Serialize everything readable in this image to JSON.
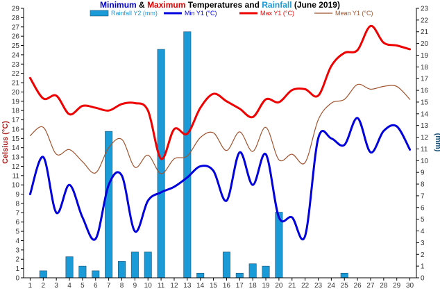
{
  "chart_data": {
    "type": "bar+line",
    "title_parts": [
      {
        "text": "Minimum",
        "color": "#0000cc"
      },
      {
        "text": " & ",
        "color": "#000000"
      },
      {
        "text": "Maximum",
        "color": "#dd0000"
      },
      {
        "text": " Temperatures and ",
        "color": "#000000"
      },
      {
        "text": "Rainfall",
        "color": "#1a9ad6"
      },
      {
        "text": " (June 2019)",
        "color": "#000000"
      }
    ],
    "ylabel_left": "Celsius (°C)",
    "ylabel_right": "(mm)",
    "ylim_left": [
      0,
      29
    ],
    "ylim_right": [
      0,
      23
    ],
    "x": [
      1,
      2,
      3,
      4,
      5,
      6,
      7,
      8,
      9,
      10,
      11,
      12,
      13,
      14,
      15,
      16,
      17,
      18,
      19,
      20,
      21,
      22,
      23,
      24,
      25,
      26,
      27,
      28,
      29,
      30
    ],
    "x_tick_labels": [
      "1",
      "2",
      "3",
      "4",
      "5",
      "6",
      "7",
      "8",
      "9",
      "10",
      "11",
      "12",
      "13",
      "14",
      "15",
      "16",
      "17",
      "18",
      "19",
      "20",
      "21",
      "22",
      "23",
      "24",
      "25",
      "26",
      "27",
      "28",
      "29",
      "30"
    ],
    "y_left_tick_labels": [
      "0",
      "1",
      "2",
      "3",
      "4",
      "5",
      "6",
      "7",
      "8",
      "9",
      "10",
      "11",
      "12",
      "13",
      "14",
      "15",
      "16",
      "17",
      "18",
      "19",
      "20",
      "21",
      "22",
      "23",
      "24",
      "25",
      "26",
      "27",
      "28",
      "29"
    ],
    "y_right_tick_labels": [
      "0",
      "1",
      "2",
      "3",
      "4",
      "5",
      "6",
      "7",
      "8",
      "9",
      "10",
      "11",
      "12",
      "13",
      "14",
      "15",
      "16",
      "17",
      "18",
      "19",
      "20",
      "21",
      "22",
      "23"
    ],
    "grid": false,
    "legend_position": "top",
    "series": [
      {
        "name": "Rainfall Y2 (mm)",
        "type": "bar",
        "axis": "right",
        "color": "#1a9ad6",
        "values": [
          0,
          0.6,
          0,
          1.8,
          1.0,
          0.6,
          12.5,
          1.4,
          2.2,
          2.2,
          19.5,
          0,
          21.0,
          0.4,
          0,
          2.2,
          0.4,
          1.2,
          1.0,
          5.6,
          0,
          0,
          0,
          0,
          0.4,
          0,
          0,
          0,
          0,
          0
        ]
      },
      {
        "name": "Min Y1 (°C)",
        "type": "line",
        "axis": "left",
        "color": "#0000dd",
        "values": [
          9.0,
          13.0,
          7.0,
          10.0,
          6.5,
          4.2,
          10.0,
          11.0,
          5.0,
          8.3,
          9.2,
          9.8,
          10.8,
          12.0,
          11.5,
          8.3,
          13.5,
          10.0,
          13.3,
          6.5,
          6.5,
          4.5,
          15.0,
          15.0,
          14.3,
          17.2,
          13.5,
          15.8,
          16.3,
          13.8
        ]
      },
      {
        "name": "Max Y1 (°C)",
        "type": "line",
        "axis": "left",
        "color": "#ee0000",
        "values": [
          21.5,
          19.3,
          19.6,
          17.6,
          18.5,
          18.3,
          18.0,
          18.7,
          18.8,
          18.0,
          12.8,
          16.0,
          15.5,
          18.3,
          19.8,
          19.0,
          18.2,
          17.3,
          19.2,
          18.9,
          20.2,
          20.3,
          19.6,
          22.8,
          24.2,
          24.5,
          27.1,
          25.3,
          25.0,
          24.6
        ]
      },
      {
        "name": "Mean Y1 (°C)",
        "type": "line",
        "axis": "left",
        "color": "#a0522d",
        "values": [
          15.3,
          16.2,
          13.3,
          13.8,
          12.5,
          11.3,
          14.0,
          14.9,
          11.9,
          13.2,
          11.2,
          12.8,
          13.1,
          15.1,
          15.6,
          13.7,
          15.7,
          13.6,
          16.2,
          12.7,
          13.3,
          12.4,
          17.0,
          18.8,
          19.2,
          20.8,
          20.3,
          20.6,
          20.6,
          19.2
        ]
      }
    ]
  }
}
